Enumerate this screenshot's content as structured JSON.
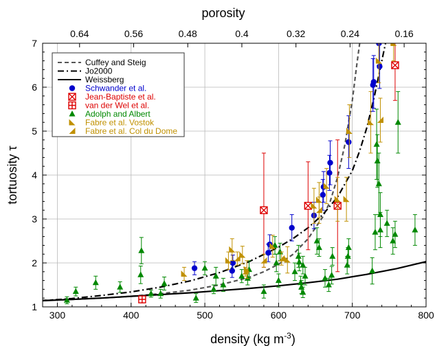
{
  "chart_data": {
    "type": "scatter",
    "title": "",
    "xlabel": "density (kg m",
    "xlabel_sup": "-3",
    "xlabel_close": ")",
    "ylabel": "tortuosity τ",
    "top_xlabel": "porosity",
    "xlim": [
      280,
      800
    ],
    "ylim": [
      1,
      7
    ],
    "grid": true,
    "legend_position": "top-left",
    "x_ticks": [
      "300",
      "400",
      "500",
      "600",
      "700",
      "800"
    ],
    "y_ticks": [
      "1",
      "2",
      "3",
      "4",
      "5",
      "6",
      "7"
    ],
    "top_ticks": [
      "0.64",
      "0.56",
      "0.48",
      "0.4",
      "0.32",
      "0.24",
      "0.16"
    ],
    "ice_density": 917,
    "curves": [
      {
        "name": "Cuffey and Steig",
        "style": "dashed",
        "color": "#555555",
        "points": [
          [
            280,
            1.15
          ],
          [
            320,
            1.17
          ],
          [
            360,
            1.2
          ],
          [
            400,
            1.24
          ],
          [
            440,
            1.3
          ],
          [
            480,
            1.38
          ],
          [
            520,
            1.5
          ],
          [
            560,
            1.67
          ],
          [
            580,
            1.8
          ],
          [
            600,
            1.97
          ],
          [
            620,
            2.2
          ],
          [
            640,
            2.55
          ],
          [
            660,
            3.05
          ],
          [
            670,
            3.4
          ],
          [
            680,
            3.95
          ],
          [
            690,
            4.7
          ],
          [
            700,
            5.7
          ],
          [
            706,
            6.5
          ],
          [
            710,
            7.0
          ]
        ]
      },
      {
        "name": "Jo2000",
        "style": "dashdot",
        "color": "#000000",
        "points": [
          [
            280,
            1.14
          ],
          [
            320,
            1.19
          ],
          [
            360,
            1.26
          ],
          [
            400,
            1.34
          ],
          [
            440,
            1.45
          ],
          [
            480,
            1.59
          ],
          [
            520,
            1.78
          ],
          [
            560,
            2.03
          ],
          [
            600,
            2.36
          ],
          [
            620,
            2.56
          ],
          [
            640,
            2.8
          ],
          [
            660,
            3.1
          ],
          [
            680,
            3.5
          ],
          [
            700,
            4.1
          ],
          [
            710,
            4.55
          ],
          [
            720,
            5.1
          ],
          [
            730,
            5.8
          ],
          [
            740,
            6.6
          ],
          [
            745,
            7.0
          ]
        ]
      },
      {
        "name": "Weissberg",
        "style": "solid",
        "color": "#000000",
        "points": [
          [
            280,
            1.14
          ],
          [
            320,
            1.17
          ],
          [
            360,
            1.2
          ],
          [
            400,
            1.24
          ],
          [
            440,
            1.28
          ],
          [
            480,
            1.32
          ],
          [
            520,
            1.37
          ],
          [
            560,
            1.42
          ],
          [
            600,
            1.48
          ],
          [
            640,
            1.55
          ],
          [
            680,
            1.63
          ],
          [
            720,
            1.74
          ],
          [
            760,
            1.87
          ],
          [
            800,
            2.03
          ]
        ]
      }
    ],
    "series": [
      {
        "name": "Schwander et al.",
        "marker": "circle",
        "color": "#0000cc",
        "points": [
          [
            486,
            1.88,
            0.15
          ],
          [
            538,
            2.0,
            0.18
          ],
          [
            537,
            1.82,
            0.15
          ],
          [
            586,
            2.23,
            0.2
          ],
          [
            588,
            2.42,
            0.22
          ],
          [
            618,
            2.8,
            0.3
          ],
          [
            648,
            3.08,
            0.3
          ],
          [
            660,
            3.55,
            0.35
          ],
          [
            661,
            3.73,
            0.35
          ],
          [
            669,
            4.05,
            0.4
          ],
          [
            670,
            4.28,
            0.5
          ],
          [
            695,
            4.75,
            0.6
          ],
          [
            728,
            6.05,
            0.6
          ],
          [
            729,
            6.12,
            0.6
          ],
          [
            737,
            6.47,
            0.5
          ],
          [
            736,
            7.0,
            0.5
          ]
        ]
      },
      {
        "name": "Jean-Baptiste et al.",
        "marker": "box-x",
        "color": "#dd0000",
        "points": [
          [
            580,
            3.2,
            1.3
          ],
          [
            640,
            3.3,
            1.0
          ],
          [
            680,
            3.3,
            1.5
          ],
          [
            758,
            6.5,
            0.8
          ]
        ]
      },
      {
        "name": "van der Wel et al.",
        "marker": "box-plus",
        "color": "#dd0000",
        "points": [
          [
            415,
            1.17,
            0.08
          ]
        ]
      },
      {
        "name": "Adolph and Albert",
        "marker": "triangle",
        "color": "#008800",
        "points": [
          [
            313,
            1.15,
            0.08
          ],
          [
            325,
            1.35,
            0.1
          ],
          [
            352,
            1.55,
            0.15
          ],
          [
            385,
            1.45,
            0.12
          ],
          [
            414,
            2.28,
            0.3
          ],
          [
            413,
            1.73,
            0.2
          ],
          [
            427,
            1.3,
            0.08
          ],
          [
            440,
            1.3,
            0.1
          ],
          [
            445,
            1.53,
            0.15
          ],
          [
            488,
            1.2,
            0.1
          ],
          [
            500,
            1.88,
            0.15
          ],
          [
            512,
            1.4,
            0.1
          ],
          [
            515,
            1.7,
            0.2
          ],
          [
            525,
            1.5,
            0.15
          ],
          [
            550,
            1.7,
            0.15
          ],
          [
            558,
            1.65,
            0.15
          ],
          [
            560,
            1.85,
            0.2
          ],
          [
            580,
            1.35,
            0.15
          ],
          [
            595,
            2.4,
            0.2
          ],
          [
            597,
            2.0,
            0.2
          ],
          [
            600,
            1.6,
            0.15
          ],
          [
            602,
            2.25,
            0.2
          ],
          [
            622,
            1.8,
            0.2
          ],
          [
            627,
            2.15,
            0.25
          ],
          [
            628,
            2.02,
            0.2
          ],
          [
            630,
            1.55,
            0.15
          ],
          [
            631,
            1.45,
            0.15
          ],
          [
            633,
            1.95,
            0.2
          ],
          [
            633,
            1.33,
            0.12
          ],
          [
            636,
            1.7,
            0.2
          ],
          [
            652,
            2.5,
            0.3
          ],
          [
            655,
            2.35,
            0.2
          ],
          [
            663,
            1.65,
            0.2
          ],
          [
            668,
            1.5,
            0.15
          ],
          [
            672,
            1.72,
            0.2
          ],
          [
            673,
            2.15,
            0.2
          ],
          [
            693,
            1.95,
            0.2
          ],
          [
            694,
            2.15,
            0.2
          ],
          [
            695,
            2.35,
            0.2
          ],
          [
            727,
            1.82,
            0.3
          ],
          [
            731,
            2.7,
            0.4
          ],
          [
            733,
            4.7,
            0.8
          ],
          [
            734,
            4.32,
            0.6
          ],
          [
            736,
            3.8,
            0.7
          ],
          [
            738,
            3.1,
            0.5
          ],
          [
            738,
            2.75,
            0.4
          ],
          [
            747,
            2.9,
            0.3
          ],
          [
            755,
            2.5,
            0.3
          ],
          [
            758,
            2.65,
            0.3
          ],
          [
            762,
            5.2,
            0.7
          ],
          [
            785,
            2.75,
            0.35
          ]
        ]
      },
      {
        "name": "Fabre et al. Vostok",
        "marker": "vostok",
        "color": "#c09000",
        "points": [
          [
            472,
            1.75,
            0.15
          ],
          [
            532,
            2.05,
            0.2
          ],
          [
            537,
            2.3,
            0.25
          ],
          [
            551,
            2.18,
            0.2
          ],
          [
            557,
            1.85,
            0.2
          ],
          [
            592,
            2.38,
            0.25
          ],
          [
            612,
            2.07,
            0.3
          ],
          [
            648,
            3.3,
            0.4
          ],
          [
            655,
            3.43,
            0.4
          ],
          [
            665,
            3.75,
            0.4
          ],
          [
            680,
            3.45,
            0.5
          ],
          [
            692,
            3.45,
            0.5
          ],
          [
            696,
            5.0,
            0.6
          ],
          [
            725,
            5.2,
            0.7
          ],
          [
            736,
            6.6,
            0.5
          ],
          [
            756,
            7.0,
            0.4
          ]
        ]
      },
      {
        "name": "Fabre et al. Col du Dome",
        "marker": "coldudome",
        "color": "#c09000",
        "points": [
          [
            544,
            2.1,
            0.15
          ],
          [
            555,
            1.8,
            0.1
          ],
          [
            580,
            2.05,
            0.15
          ],
          [
            604,
            2.1,
            0.15
          ],
          [
            655,
            3.2,
            0.3
          ],
          [
            738,
            5.25,
            0.5
          ]
        ]
      }
    ]
  }
}
